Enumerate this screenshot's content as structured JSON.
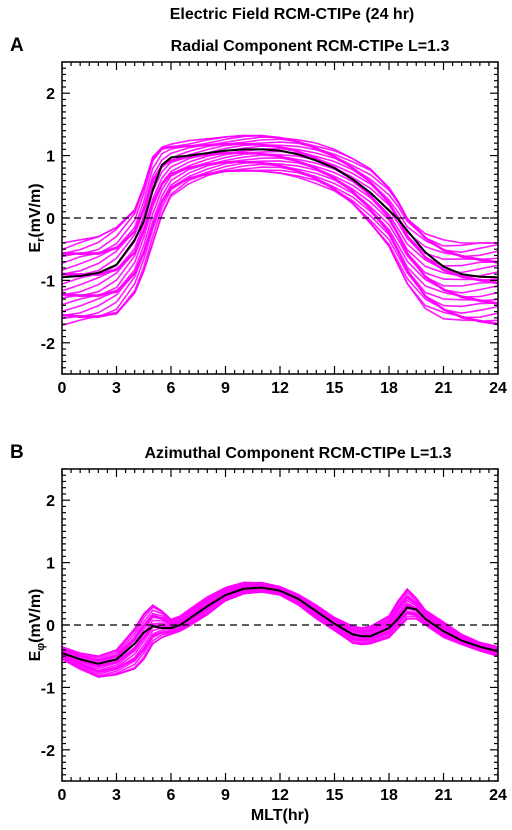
{
  "figure": {
    "title": "Electric Field RCM-CTIPe (24 hr)"
  },
  "colors": {
    "band": "#ff00ff",
    "median": "#000000",
    "zero_line": "#000000"
  },
  "chart_data": [
    {
      "type": "line",
      "panel_letter": "A",
      "title": "Radial Component RCM-CTIPe L=1.3",
      "ylabel_main": "E",
      "ylabel_sub": "r",
      "ylabel_tail": "(mV/m)",
      "xlabel": "",
      "xlim": [
        0,
        24
      ],
      "ylim": [
        -2.5,
        2.5
      ],
      "xticks": [
        0,
        3,
        6,
        9,
        12,
        15,
        18,
        21,
        24
      ],
      "yticks": [
        -2,
        -1,
        0,
        1,
        2
      ],
      "reference_line_y": 0,
      "x": [
        0,
        1,
        2,
        3,
        4,
        4.5,
        5,
        5.5,
        6,
        7,
        8,
        9,
        10,
        11,
        12,
        13,
        14,
        15,
        16,
        17,
        18,
        18.5,
        19,
        20,
        21,
        22,
        23,
        24
      ],
      "series": [
        {
          "values": [
            -0.95,
            -0.93,
            -0.88,
            -0.75,
            -0.35,
            -0.05,
            0.45,
            0.85,
            0.97,
            1.0,
            1.04,
            1.08,
            1.1,
            1.1,
            1.08,
            1.02,
            0.92,
            0.8,
            0.62,
            0.4,
            0.12,
            -0.02,
            -0.2,
            -0.55,
            -0.78,
            -0.9,
            -0.94,
            -0.95
          ]
        },
        {
          "values": [
            -0.4,
            -0.35,
            -0.3,
            -0.15,
            0.15,
            0.55,
            1.05,
            1.2,
            1.22,
            1.24,
            1.27,
            1.3,
            1.32,
            1.33,
            1.32,
            1.28,
            1.2,
            1.1,
            0.95,
            0.78,
            0.5,
            0.3,
            0.05,
            -0.2,
            -0.35,
            -0.4,
            -0.4,
            -0.4
          ]
        },
        {
          "values": [
            -1.72,
            -1.7,
            -1.65,
            -1.55,
            -1.2,
            -0.85,
            -0.4,
            0.05,
            0.35,
            0.55,
            0.65,
            0.72,
            0.75,
            0.75,
            0.72,
            0.65,
            0.55,
            0.4,
            0.2,
            -0.1,
            -0.45,
            -0.75,
            -1.05,
            -1.45,
            -1.62,
            -1.7,
            -1.72,
            -1.72
          ]
        }
      ]
    },
    {
      "type": "line",
      "panel_letter": "B",
      "title": "Azimuthal Component RCM-CTIPe L=1.3",
      "ylabel_main": "E",
      "ylabel_sub": "φ",
      "ylabel_tail": "(mV/m)",
      "xlabel": "MLT(hr)",
      "xlim": [
        0,
        24
      ],
      "ylim": [
        -2.5,
        2.5
      ],
      "xticks": [
        0,
        3,
        6,
        9,
        12,
        15,
        18,
        21,
        24
      ],
      "yticks": [
        -2,
        -1,
        0,
        1,
        2
      ],
      "reference_line_y": 0,
      "x": [
        0,
        1,
        2,
        3,
        4,
        4.5,
        5,
        5.5,
        6,
        6.5,
        7,
        8,
        9,
        10,
        11,
        12,
        13,
        14,
        15,
        16,
        16.5,
        17,
        18,
        18.5,
        19,
        19.5,
        20,
        21,
        22,
        23,
        24
      ],
      "series": [
        {
          "values": [
            -0.45,
            -0.55,
            -0.62,
            -0.55,
            -0.3,
            -0.12,
            -0.02,
            -0.05,
            -0.05,
            0.0,
            0.1,
            0.3,
            0.48,
            0.58,
            0.6,
            0.55,
            0.42,
            0.22,
            0.02,
            -0.15,
            -0.18,
            -0.18,
            -0.05,
            0.1,
            0.28,
            0.25,
            0.1,
            -0.1,
            -0.25,
            -0.35,
            -0.42
          ]
        },
        {
          "values": [
            -0.35,
            -0.45,
            -0.5,
            -0.4,
            -0.05,
            0.2,
            0.35,
            0.25,
            0.1,
            0.15,
            0.25,
            0.45,
            0.6,
            0.68,
            0.68,
            0.62,
            0.5,
            0.32,
            0.12,
            -0.02,
            -0.05,
            -0.02,
            0.15,
            0.4,
            0.6,
            0.45,
            0.25,
            0.05,
            -0.15,
            -0.28,
            -0.35
          ]
        },
        {
          "values": [
            -0.55,
            -0.72,
            -0.85,
            -0.8,
            -0.7,
            -0.55,
            -0.3,
            -0.2,
            -0.15,
            -0.1,
            -0.02,
            0.15,
            0.38,
            0.5,
            0.53,
            0.48,
            0.32,
            0.1,
            -0.1,
            -0.3,
            -0.32,
            -0.3,
            -0.2,
            -0.05,
            0.1,
            0.1,
            0.0,
            -0.2,
            -0.32,
            -0.42,
            -0.5
          ]
        }
      ]
    }
  ]
}
